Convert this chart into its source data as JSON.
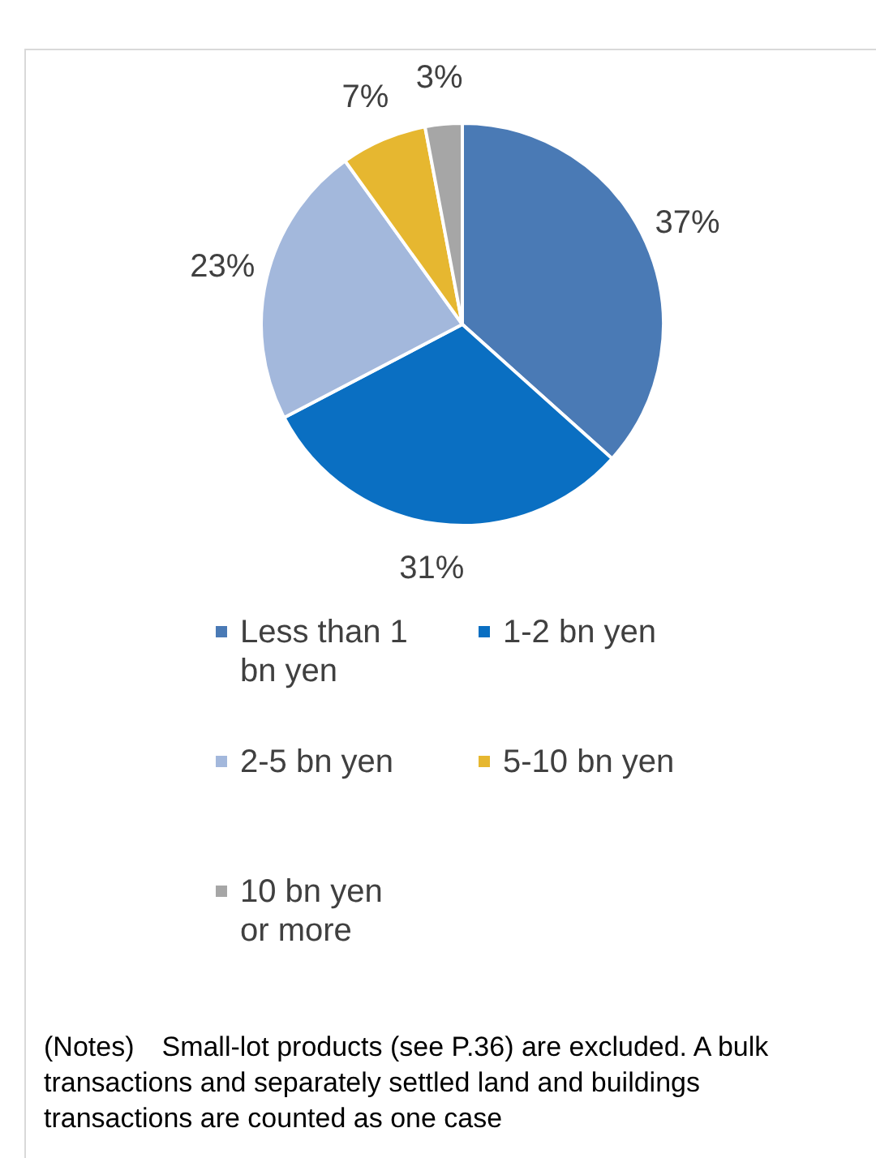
{
  "chart_data": {
    "type": "pie",
    "categories": [
      "Less than 1 bn yen",
      "1-2 bn yen",
      "2-5 bn yen",
      "5-10 bn yen",
      "10 bn yen or more"
    ],
    "values": [
      37,
      31,
      23,
      7,
      3
    ],
    "colors": [
      "#4a7ab5",
      "#0a6fc2",
      "#a3b8dc",
      "#e6b730",
      "#a6a6a6"
    ],
    "value_labels": [
      "37%",
      "31%",
      "23%",
      "7%",
      "3%"
    ],
    "legend": "bottom",
    "annotations": [
      "(Notes)　Small-lot products (see P.36) are excluded. A bulk transactions and separately settled land and buildings transactions are counted as one case"
    ]
  }
}
